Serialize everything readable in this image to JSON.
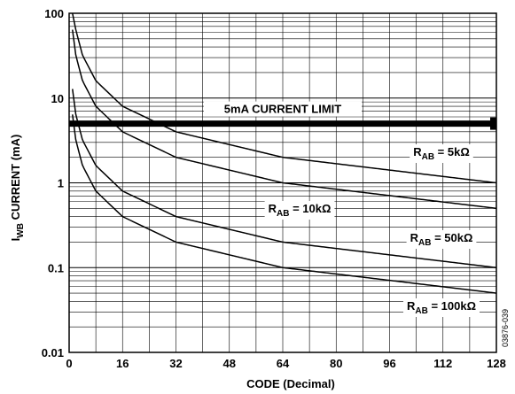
{
  "chart_data": {
    "type": "line",
    "xlabel": "CODE (Decimal)",
    "ylabel": {
      "main": "I",
      "sub": "WB",
      "rest": " CURRENT (mA)"
    },
    "x_scale": "linear",
    "y_scale": "log",
    "xlim": [
      0,
      128
    ],
    "ylim": [
      0.01,
      100
    ],
    "x_ticks": [
      "0",
      "16",
      "32",
      "48",
      "64",
      "80",
      "96",
      "112",
      "128"
    ],
    "y_ticks": [
      "0.01",
      "0.1",
      "1",
      "10",
      "100"
    ],
    "grid": true,
    "series": [
      {
        "name": "R_AB = 5kΩ",
        "label": {
          "pre": "R",
          "sub": "AB",
          "post": " = 5kΩ"
        },
        "x": [
          1,
          2,
          4,
          8,
          16,
          32,
          64,
          128
        ],
        "y": [
          100,
          64,
          32,
          16,
          8,
          4,
          2,
          1
        ]
      },
      {
        "name": "R_AB = 10kΩ",
        "label": {
          "pre": "R",
          "sub": "AB",
          "post": " = 10kΩ"
        },
        "x": [
          1,
          2,
          4,
          8,
          16,
          32,
          64,
          128
        ],
        "y": [
          64,
          32,
          16,
          8,
          4,
          2,
          1,
          0.5
        ]
      },
      {
        "name": "R_AB = 50kΩ",
        "label": {
          "pre": "R",
          "sub": "AB",
          "post": " = 50kΩ"
        },
        "x": [
          1,
          2,
          4,
          8,
          16,
          32,
          64,
          128
        ],
        "y": [
          12.8,
          6.4,
          3.2,
          1.6,
          0.8,
          0.4,
          0.2,
          0.1
        ]
      },
      {
        "name": "R_AB = 100kΩ",
        "label": {
          "pre": "R",
          "sub": "AB",
          "post": " = 100kΩ"
        },
        "x": [
          1,
          2,
          4,
          8,
          16,
          32,
          64,
          128
        ],
        "y": [
          6.4,
          3.2,
          1.6,
          0.8,
          0.4,
          0.2,
          0.1,
          0.05
        ]
      }
    ],
    "limit_line": {
      "label": "5mA CURRENT LIMIT",
      "value": 5
    }
  },
  "figure_id": "03876-039"
}
